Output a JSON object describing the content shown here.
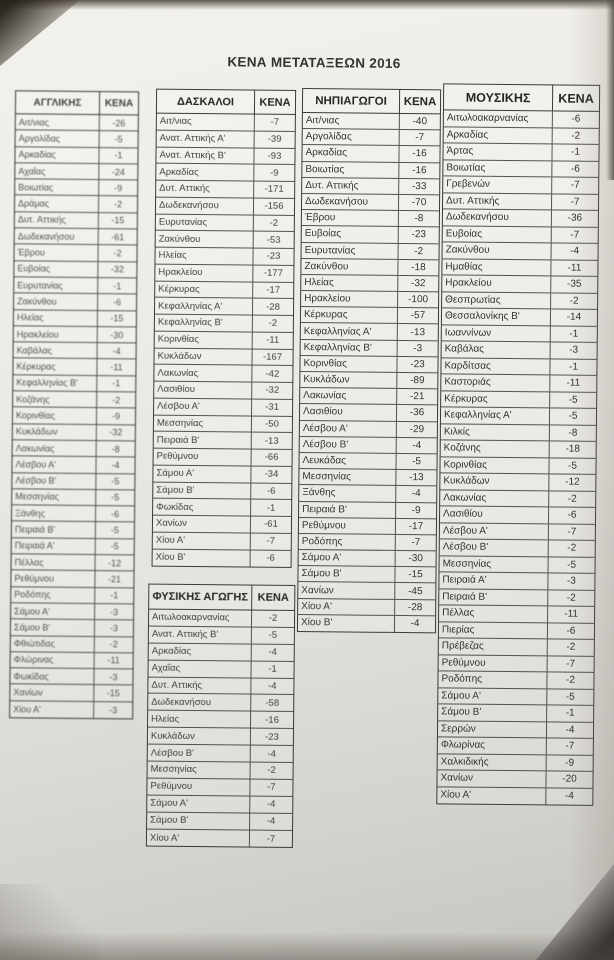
{
  "title": "ΚΕΝΑ ΜΕΤΑΤΑΞΕΩΝ 2016",
  "tables": [
    {
      "header": "ΑΓΓΛΙΚΗΣ",
      "value_header": "ΚΕΝΑ",
      "rows": [
        [
          "Αιτ/νιας",
          "-26"
        ],
        [
          "Αργολίδας",
          "-5"
        ],
        [
          "Αρκαδίας",
          "-1"
        ],
        [
          "Αχαΐας",
          "-24"
        ],
        [
          "Βοιωτίας",
          "-9"
        ],
        [
          "Δράμας",
          "-2"
        ],
        [
          "Δυτ. Αττικής",
          "-15"
        ],
        [
          "Δωδεκανήσου",
          "-61"
        ],
        [
          "Έβρου",
          "-2"
        ],
        [
          "Ευβοίας",
          "-32"
        ],
        [
          "Ευρυτανίας",
          "-1"
        ],
        [
          "Ζακύνθου",
          "-6"
        ],
        [
          "Ηλείας",
          "-15"
        ],
        [
          "Ηρακλείου",
          "-30"
        ],
        [
          "Καβάλας",
          "-4"
        ],
        [
          "Κέρκυρας",
          "-11"
        ],
        [
          "Κεφαλληνίας Β'",
          "-1"
        ],
        [
          "Κοζάνης",
          "-2"
        ],
        [
          "Κορινθίας",
          "-9"
        ],
        [
          "Κυκλάδων",
          "-32"
        ],
        [
          "Λακωνίας",
          "-8"
        ],
        [
          "Λέσβου Α'",
          "-4"
        ],
        [
          "Λέσβου Β'",
          "-5"
        ],
        [
          "Μεσσηνίας",
          "-5"
        ],
        [
          "Ξάνθης",
          "-6"
        ],
        [
          "Πειραιά Β'",
          "-5"
        ],
        [
          "Πειραιά Α'",
          "-5"
        ],
        [
          "Πέλλας",
          "-12"
        ],
        [
          "Ρεθύμνου",
          "-21"
        ],
        [
          "Ροδόπης",
          "-1"
        ],
        [
          "Σάμου Α'",
          "-3"
        ],
        [
          "Σάμου Β'",
          "-3"
        ],
        [
          "Φθιώτιδας",
          "-2"
        ],
        [
          "Φλώρινας",
          "-11"
        ],
        [
          "Φωκίδας",
          "-3"
        ],
        [
          "Χανίων",
          "-15"
        ],
        [
          "Χίου Α'",
          "-3"
        ]
      ]
    },
    {
      "header": "ΔΑΣΚΑΛΟΙ",
      "value_header": "ΚΕΝΑ",
      "rows": [
        [
          "Αιτ/νιας",
          "-7"
        ],
        [
          "Ανατ. Αττικής Α'",
          "-39"
        ],
        [
          "Ανατ. Αττικής Β'",
          "-93"
        ],
        [
          "Αρκαδίας",
          "-9"
        ],
        [
          "Δυτ. Αττικής",
          "-171"
        ],
        [
          "Δωδεκανήσου",
          "-156"
        ],
        [
          "Ευρυτανίας",
          "-2"
        ],
        [
          "Ζακύνθου",
          "-53"
        ],
        [
          "Ηλείας",
          "-23"
        ],
        [
          "Ηρακλείου",
          "-177"
        ],
        [
          "Κέρκυρας",
          "-17"
        ],
        [
          "Κεφαλληνίας Α'",
          "-28"
        ],
        [
          "Κεφαλληνίας Β'",
          "-2"
        ],
        [
          "Κορινθίας",
          "-11"
        ],
        [
          "Κυκλάδων",
          "-167"
        ],
        [
          "Λακωνίας",
          "-42"
        ],
        [
          "Λασιθίου",
          "-32"
        ],
        [
          "Λέσβου Α'",
          "-31"
        ],
        [
          "Μεσσηνίας",
          "-50"
        ],
        [
          "Πειραιά Β'",
          "-13"
        ],
        [
          "Ρεθύμνου",
          "-66"
        ],
        [
          "Σάμου Α'",
          "-34"
        ],
        [
          "Σάμου Β'",
          "-6"
        ],
        [
          "Φωκίδας",
          "-1"
        ],
        [
          "Χανίων",
          "-61"
        ],
        [
          "Χίου Α'",
          "-7"
        ],
        [
          "Χίου Β'",
          "-6"
        ]
      ]
    },
    {
      "header": "ΦΥΣΙΚΗΣ ΑΓΩΓΗΣ",
      "value_header": "ΚΕΝΑ",
      "rows": [
        [
          "Αιτωλοακαρνανίας",
          "-2"
        ],
        [
          "Ανατ. Αττικής Β'",
          "-5"
        ],
        [
          "Αρκαδίας",
          "-4"
        ],
        [
          "Αχαΐας",
          "-1"
        ],
        [
          "Δυτ. Αττικής",
          "-4"
        ],
        [
          "Δωδεκανήσου",
          "-58"
        ],
        [
          "Ηλείας",
          "-16"
        ],
        [
          "Κυκλάδων",
          "-23"
        ],
        [
          "Λέσβου Β'",
          "-4"
        ],
        [
          "Μεσσηνίας",
          "-2"
        ],
        [
          "Ρεθύμνου",
          "-7"
        ],
        [
          "Σάμου Α'",
          "-4"
        ],
        [
          "Σάμου Β'",
          "-4"
        ],
        [
          "Χίου Α'",
          "-7"
        ]
      ]
    },
    {
      "header": "ΝΗΠΙΑΓΩΓΟΙ",
      "value_header": "ΚΕΝΑ",
      "rows": [
        [
          "Αιτ/νιας",
          "-40"
        ],
        [
          "Αργολίδας",
          "-7"
        ],
        [
          "Αρκαδίας",
          "-16"
        ],
        [
          "Βοιωτίας",
          "-16"
        ],
        [
          "Δυτ. Αττικής",
          "-33"
        ],
        [
          "Δωδεκανήσου",
          "-70"
        ],
        [
          "Έβρου",
          "-8"
        ],
        [
          "Ευβοίας",
          "-23"
        ],
        [
          "Ευρυτανίας",
          "-2"
        ],
        [
          "Ζακύνθου",
          "-18"
        ],
        [
          "Ηλείας",
          "-32"
        ],
        [
          "Ηρακλείου",
          "-100"
        ],
        [
          "Κέρκυρας",
          "-57"
        ],
        [
          "Κεφαλληνίας Α'",
          "-13"
        ],
        [
          "Κεφαλληνίας Β'",
          "-3"
        ],
        [
          "Κορινθίας",
          "-23"
        ],
        [
          "Κυκλάδων",
          "-89"
        ],
        [
          "Λακωνίας",
          "-21"
        ],
        [
          "Λασιθίου",
          "-36"
        ],
        [
          "Λέσβου Α'",
          "-29"
        ],
        [
          "Λέσβου Β'",
          "-4"
        ],
        [
          "Λευκάδας",
          "-5"
        ],
        [
          "Μεσσηνίας",
          "-13"
        ],
        [
          "Ξάνθης",
          "-4"
        ],
        [
          "Πειραιά Β'",
          "-9"
        ],
        [
          "Ρεθύμνου",
          "-17"
        ],
        [
          "Ροδόπης",
          "-7"
        ],
        [
          "Σάμου Α'",
          "-30"
        ],
        [
          "Σάμου Β'",
          "-15"
        ],
        [
          "Χανίων",
          "-45"
        ],
        [
          "Χίου Α'",
          "-28"
        ],
        [
          "Χίου Β'",
          "-4"
        ]
      ]
    },
    {
      "header": "ΜΟΥΣΙΚΗΣ",
      "value_header": "ΚΕΝΑ",
      "rows": [
        [
          "Αιτωλοακαρνανίας",
          "-6"
        ],
        [
          "Αρκαδίας",
          "-2"
        ],
        [
          "Άρτας",
          "-1"
        ],
        [
          "Βοιωτίας",
          "-6"
        ],
        [
          "Γρεβενών",
          "-7"
        ],
        [
          "Δυτ. Αττικής",
          "-7"
        ],
        [
          "Δωδεκανήσου",
          "-36"
        ],
        [
          "Ευβοίας",
          "-7"
        ],
        [
          "Ζακύνθου",
          "-4"
        ],
        [
          "Ημαθίας",
          "-11"
        ],
        [
          "Ηρακλείου",
          "-35"
        ],
        [
          "Θεσπρωτίας",
          "-2"
        ],
        [
          "Θεσσαλονίκης Β'",
          "-14"
        ],
        [
          "Ιωαννίνων",
          "-1"
        ],
        [
          "Καβάλας",
          "-3"
        ],
        [
          "Καρδίτσας",
          "-1"
        ],
        [
          "Καστοριάς",
          "-11"
        ],
        [
          "Κέρκυρας",
          "-5"
        ],
        [
          "Κεφαλληνίας Α'",
          "-5"
        ],
        [
          "Κιλκίς",
          "-8"
        ],
        [
          "Κοζάνης",
          "-18"
        ],
        [
          "Κορινθίας",
          "-5"
        ],
        [
          "Κυκλάδων",
          "-12"
        ],
        [
          "Λακωνίας",
          "-2"
        ],
        [
          "Λασιθίου",
          "-6"
        ],
        [
          "Λέσβου Α'",
          "-7"
        ],
        [
          "Λέσβου Β'",
          "-2"
        ],
        [
          "Μεσσηνίας",
          "-5"
        ],
        [
          "Πειραιά Α'",
          "-3"
        ],
        [
          "Πειραιά Β'",
          "-2"
        ],
        [
          "Πέλλας",
          "-11"
        ],
        [
          "Πιερίας",
          "-6"
        ],
        [
          "Πρέβεζας",
          "-2"
        ],
        [
          "Ρεθύμνου",
          "-7"
        ],
        [
          "Ροδόπης",
          "-2"
        ],
        [
          "Σάμου Α'",
          "-5"
        ],
        [
          "Σάμου Β'",
          "-1"
        ],
        [
          "Σερρών",
          "-4"
        ],
        [
          "Φλωρίνας",
          "-7"
        ],
        [
          "Χαλκιδικής",
          "-9"
        ],
        [
          "Χανίων",
          "-20"
        ],
        [
          "Χίου Α'",
          "-4"
        ]
      ]
    }
  ]
}
